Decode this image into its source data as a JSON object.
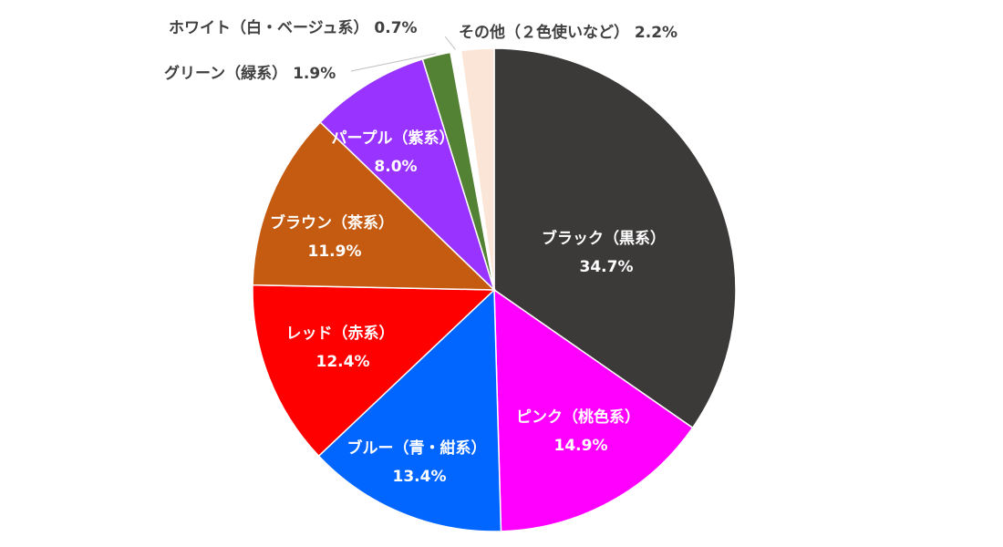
{
  "chart_data": {
    "type": "pie",
    "slices": [
      {
        "label": "ブラック（黒系）",
        "value": 34.7,
        "value_text": "34.7%",
        "color": "#3c3939"
      },
      {
        "label": "ピンク（桃色系）",
        "value": 14.9,
        "value_text": "14.9%",
        "color": "#ff00ff"
      },
      {
        "label": "ブルー（青・紺系）",
        "value": 13.4,
        "value_text": "13.4%",
        "color": "#0066ff"
      },
      {
        "label": "レッド（赤系）",
        "value": 12.4,
        "value_text": "12.4%",
        "color": "#ff0000"
      },
      {
        "label": "ブラウン（茶系）",
        "value": 11.9,
        "value_text": "11.9%",
        "color": "#c55a11"
      },
      {
        "label": "パープル（紫系）",
        "value": 8.0,
        "value_text": "8.0%",
        "color": "#9933ff"
      },
      {
        "label": "グリーン（緑系）",
        "value": 1.9,
        "value_text": "1.9%",
        "color": "#548235"
      },
      {
        "label": "ホワイト（白・ベージュ系）",
        "value": 0.7,
        "value_text": "0.7%",
        "color": "#ffffff"
      },
      {
        "label": "その他（２色使いなど）",
        "value": 2.2,
        "value_text": "2.2%",
        "color": "#fbe5d6"
      }
    ]
  }
}
